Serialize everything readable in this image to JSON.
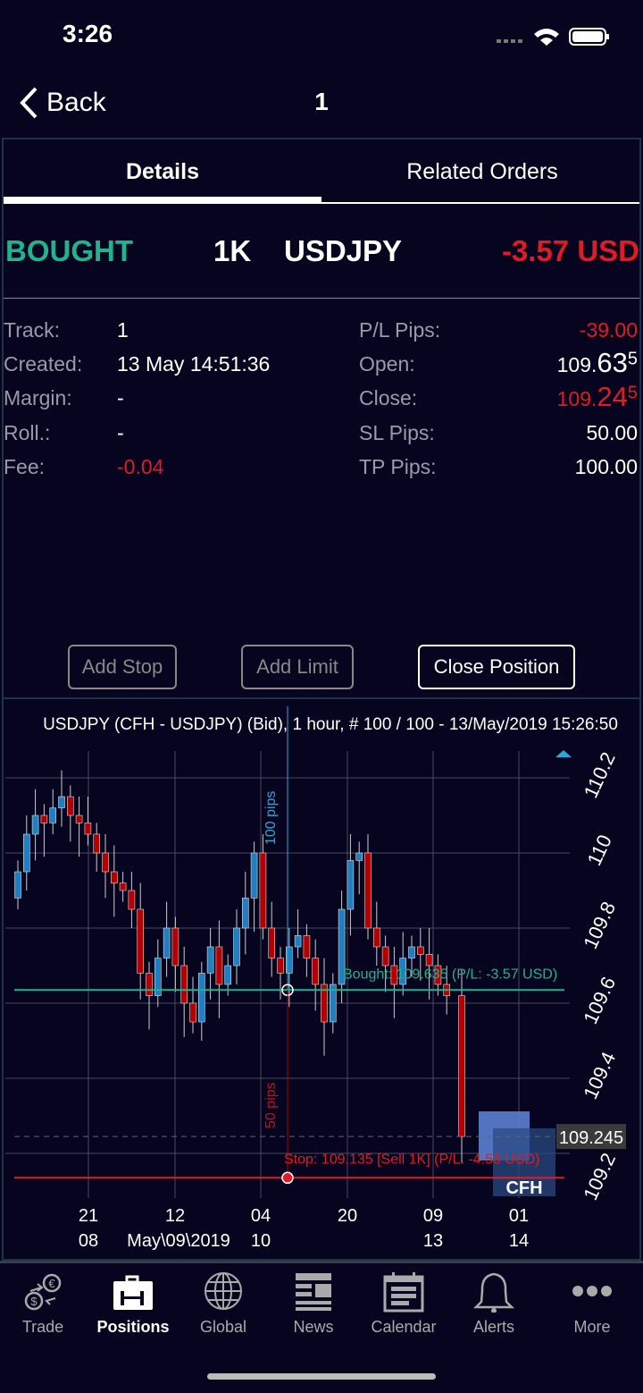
{
  "status": {
    "time": "3:26"
  },
  "nav": {
    "back": "Back",
    "title": "1"
  },
  "tabs": [
    {
      "label": "Details",
      "active": true
    },
    {
      "label": "Related Orders",
      "active": false
    }
  ],
  "position": {
    "side": "BOUGHT",
    "size": "1K",
    "symbol": "USDJPY",
    "pl": "-3.57 USD"
  },
  "details_left": [
    {
      "label": "Track:",
      "value": "1"
    },
    {
      "label": "Created:",
      "value": "13 May 14:51:36"
    },
    {
      "label": "Margin:",
      "value": "-"
    },
    {
      "label": "Roll.:",
      "value": "-"
    },
    {
      "label": "Fee:",
      "value": "-0.04",
      "negative": true
    }
  ],
  "details_right": [
    {
      "label": "P/L Pips:",
      "value": "-39.00",
      "negative": true
    },
    {
      "label": "Open:",
      "value": "109.635",
      "big": "109.",
      "pip": "63",
      "frac": "5"
    },
    {
      "label": "Close:",
      "value": "109.245",
      "big": "109.",
      "pip": "24",
      "frac": "5",
      "negative": true
    },
    {
      "label": "SL Pips:",
      "value": "50.00"
    },
    {
      "label": "TP Pips:",
      "value": "100.00"
    }
  ],
  "buttons": {
    "add_stop": "Add Stop",
    "add_limit": "Add Limit",
    "close_position": "Close Position"
  },
  "colors": {
    "bought": "#1fb38e",
    "negative": "#e01b24",
    "bull": "#1f7fc0",
    "bear": "#b40000",
    "tp": "#2aa8d8"
  },
  "chart_data": {
    "type": "candlestick",
    "title": "USDJPY (CFH - USDJPY) (Bid), 1 hour, # 100 / 100 - 13/May/2019 15:26:50",
    "yticks": [
      110.2,
      110,
      109.8,
      109.6,
      109.4,
      109.2
    ],
    "ytick_labels": [
      "110.2",
      "110",
      "109.8",
      "109.6",
      "109.4",
      "109.2"
    ],
    "xticks": [
      {
        "top": "21",
        "bottom": "08"
      },
      {
        "top": "12",
        "bottom": "May\\09\\2019"
      },
      {
        "top": "04",
        "bottom": "10"
      },
      {
        "top": "20",
        "bottom": ""
      },
      {
        "top": "09",
        "bottom": "13"
      },
      {
        "top": "01",
        "bottom": "14"
      }
    ],
    "current_price": "109.245",
    "bought_line": {
      "price": 109.635,
      "label": "Bought: 109.635 (P/L: -3.57 USD)"
    },
    "stop_line": {
      "price": 109.135,
      "label": "Stop: 109.135 [Sell 1K] (P/L: -4.58 USD)"
    },
    "tp_label": "100 pips",
    "sl_label": "50 pips",
    "closes": [
      109.95,
      110.05,
      110.1,
      110.08,
      110.12,
      110.15,
      110.1,
      110.08,
      110.05,
      110.0,
      109.95,
      109.92,
      109.9,
      109.85,
      109.68,
      109.62,
      109.72,
      109.8,
      109.7,
      109.6,
      109.55,
      109.68,
      109.75,
      109.65,
      109.7,
      109.8,
      109.88,
      110.0,
      109.8,
      109.72,
      109.68,
      109.75,
      109.78,
      109.72,
      109.65,
      109.55,
      109.65,
      109.85,
      109.98,
      110.0,
      109.8,
      109.75,
      109.7,
      109.65,
      109.72,
      109.75,
      109.73,
      109.7,
      109.65,
      109.62,
      109.245
    ],
    "first_open": 109.88,
    "watermark": "CFH"
  },
  "tabbar": [
    {
      "label": "Trade",
      "icon": "trade-icon"
    },
    {
      "label": "Positions",
      "icon": "briefcase-icon",
      "selected": true
    },
    {
      "label": "Global",
      "icon": "globe-icon"
    },
    {
      "label": "News",
      "icon": "news-icon"
    },
    {
      "label": "Calendar",
      "icon": "calendar-icon"
    },
    {
      "label": "Alerts",
      "icon": "bell-icon"
    },
    {
      "label": "More",
      "icon": "more-icon"
    }
  ]
}
